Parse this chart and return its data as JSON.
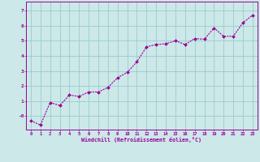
{
  "x": [
    0,
    1,
    2,
    3,
    4,
    5,
    6,
    7,
    8,
    9,
    10,
    11,
    12,
    13,
    14,
    15,
    16,
    17,
    18,
    19,
    20,
    21,
    22,
    23
  ],
  "y": [
    -0.3,
    -0.6,
    0.9,
    0.7,
    1.4,
    1.3,
    1.6,
    1.6,
    1.9,
    2.55,
    2.9,
    3.6,
    4.6,
    4.75,
    4.8,
    5.0,
    4.75,
    5.15,
    5.1,
    5.85,
    5.3,
    5.3,
    6.2,
    6.7
  ],
  "line_color": "#990099",
  "marker": "D",
  "marker_size": 2.0,
  "bg_color": "#cce8e8",
  "grid_color": "#99cccc",
  "xlabel": "Windchill (Refroidissement éolien,°C)",
  "xlabel_color": "#990099",
  "tick_color": "#990099",
  "xlim": [
    -0.5,
    23.5
  ],
  "ylim": [
    -0.9,
    7.6
  ],
  "yticks": [
    0,
    1,
    2,
    3,
    4,
    5,
    6,
    7
  ],
  "ytick_labels": [
    "-0",
    "1",
    "2",
    "3",
    "4",
    "5",
    "6",
    "7"
  ],
  "xtick_labels": [
    "0",
    "1",
    "2",
    "3",
    "4",
    "5",
    "6",
    "7",
    "8",
    "9",
    "10",
    "11",
    "12",
    "13",
    "14",
    "15",
    "16",
    "17",
    "18",
    "19",
    "20",
    "21",
    "22",
    "23"
  ]
}
